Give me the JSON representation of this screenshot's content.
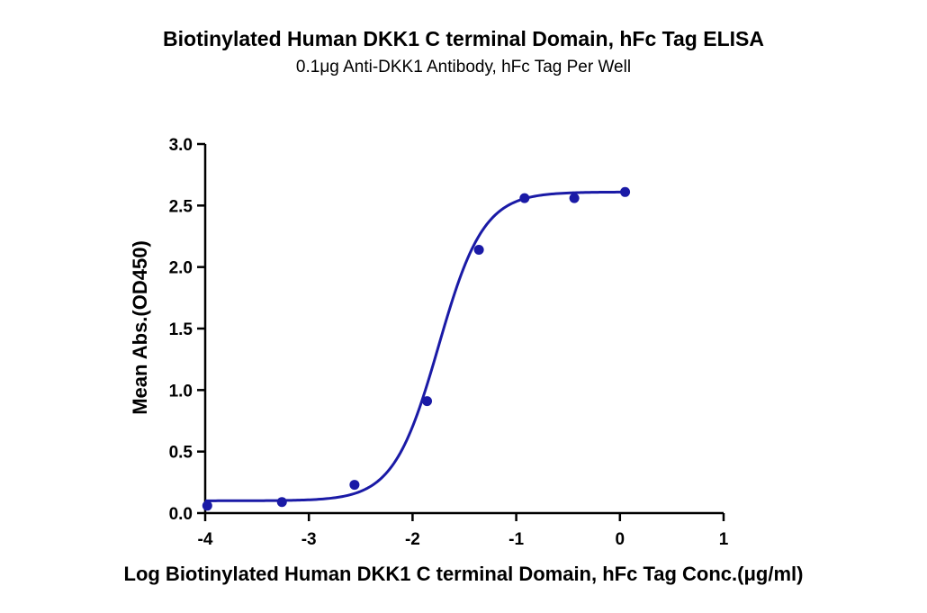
{
  "chart_data": {
    "type": "scatter",
    "title": "Biotinylated Human DKK1 C terminal Domain, hFc Tag ELISA",
    "subtitle": "0.1μg Anti-DKK1 Antibody, hFc Tag Per Well",
    "xlabel": "Log Biotinylated Human DKK1 C terminal Domain, hFc Tag Conc.(μg/ml)",
    "ylabel": "Mean Abs.(OD450)",
    "xlim": [
      -4,
      1
    ],
    "ylim": [
      0,
      3.0
    ],
    "x_ticks": [
      "-4",
      "-3",
      "-2",
      "-1",
      "0",
      "1"
    ],
    "y_ticks": [
      "0.0",
      "0.5",
      "1.0",
      "1.5",
      "2.0",
      "2.5",
      "3.0"
    ],
    "grid": false,
    "color": "#1a1aa6",
    "series": [
      {
        "points": [
          {
            "x": -3.98,
            "y": 0.06
          },
          {
            "x": -3.26,
            "y": 0.09
          },
          {
            "x": -2.56,
            "y": 0.23
          },
          {
            "x": -1.86,
            "y": 0.91
          },
          {
            "x": -1.36,
            "y": 2.14
          },
          {
            "x": -0.92,
            "y": 2.56
          },
          {
            "x": -0.44,
            "y": 2.56
          },
          {
            "x": 0.05,
            "y": 2.61
          }
        ],
        "fit": {
          "model": "4PL",
          "bottom": 0.1,
          "top": 2.61,
          "logEC50": -1.75,
          "hill": 2.0,
          "x_range": [
            -4,
            0.05
          ]
        }
      }
    ]
  }
}
